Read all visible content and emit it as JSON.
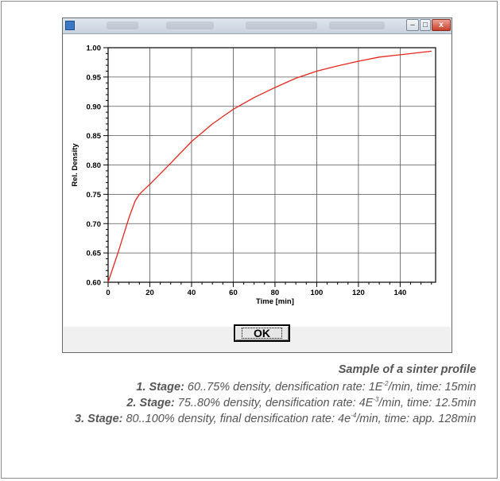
{
  "dialog": {
    "ok_label": "OK",
    "min_glyph": "–",
    "max_glyph": "□",
    "close_glyph": "x"
  },
  "chart_data": {
    "type": "line",
    "xlabel": "Time [min]",
    "ylabel": "Rel. Density",
    "xlim": [
      0,
      157
    ],
    "ylim": [
      0.6,
      1.0
    ],
    "x_ticks": [
      0,
      20,
      40,
      60,
      80,
      100,
      120,
      140
    ],
    "y_ticks": [
      0.6,
      0.65,
      0.7,
      0.75,
      0.8,
      0.85,
      0.9,
      0.95,
      1.0
    ],
    "grid": true,
    "series": [
      {
        "color": "#e8261b",
        "x": [
          0,
          5,
          10,
          13,
          15,
          17,
          20,
          25,
          30,
          40,
          50,
          60,
          70,
          80,
          90,
          100,
          110,
          120,
          130,
          140,
          150,
          155
        ],
        "y": [
          0.6,
          0.653,
          0.71,
          0.739,
          0.75,
          0.757,
          0.767,
          0.785,
          0.803,
          0.84,
          0.87,
          0.895,
          0.915,
          0.932,
          0.948,
          0.96,
          0.969,
          0.977,
          0.984,
          0.988,
          0.992,
          0.994
        ]
      }
    ]
  },
  "caption": {
    "title": "Sample of a sinter profile",
    "stage1_label": "1. Stage:",
    "stage1_pre": " 60..75% density, densification rate: 1E",
    "stage1_exp": "-2",
    "stage1_post": "/min, time: 15min",
    "stage2_label": "2. Stage:",
    "stage2_pre": " 75..80% density, densification rate: 4E",
    "stage2_exp": "-3",
    "stage2_post": "/min, time: 12.5min",
    "stage3_label": "3. Stage:",
    "stage3_pre": " 80..100% density, final densification rate: 4e",
    "stage3_exp": "-4",
    "stage3_post": "/min, time: app. 128min"
  }
}
